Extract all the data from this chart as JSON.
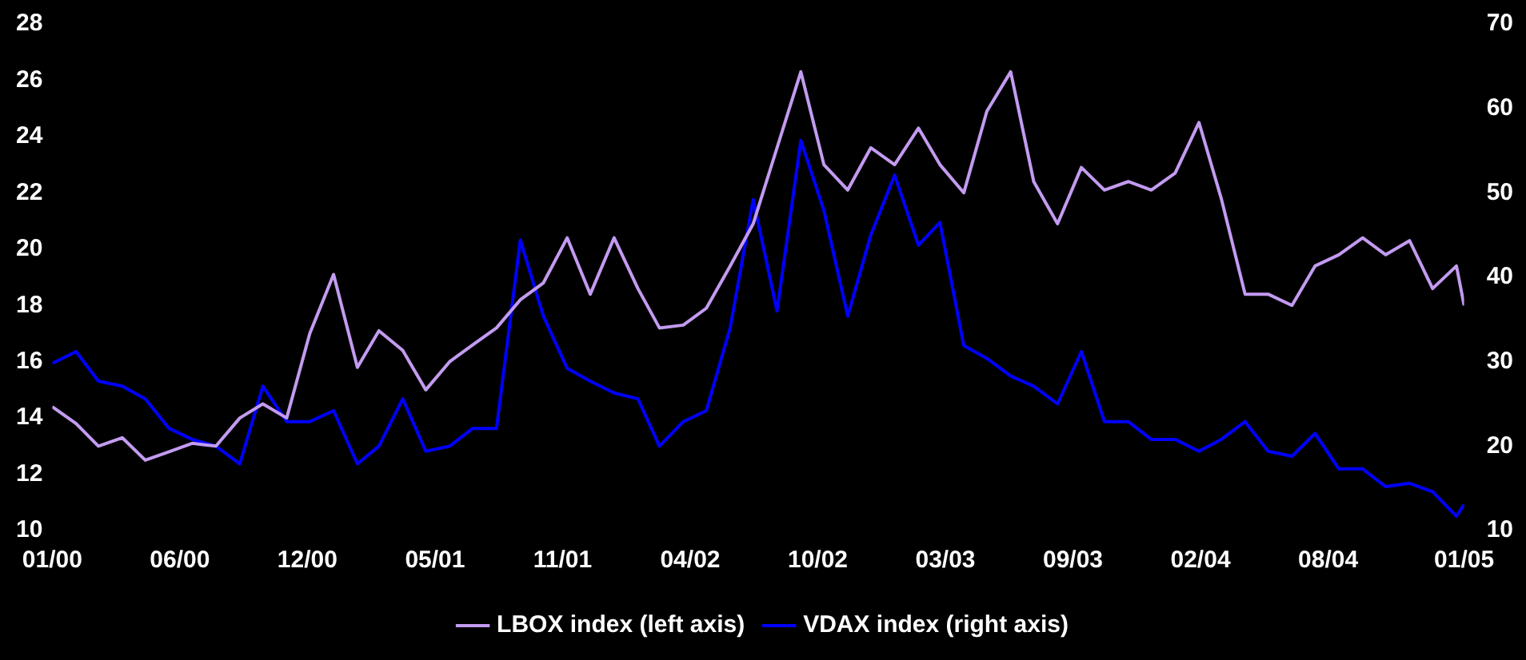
{
  "chart_data": {
    "type": "line",
    "x": [
      "2000-01-15",
      "2000-02-15",
      "2000-03-15",
      "2000-04-15",
      "2000-05-15",
      "2000-06-15",
      "2000-07-15",
      "2000-08-15",
      "2000-09-15",
      "2000-10-15",
      "2000-11-15",
      "2000-12-15",
      "2001-01-15",
      "2001-02-15",
      "2001-03-15",
      "2001-04-15",
      "2001-05-15",
      "2001-06-15",
      "2001-07-15",
      "2001-08-15",
      "2001-09-15",
      "2001-10-15",
      "2001-11-15",
      "2001-12-15",
      "2002-01-15",
      "2002-02-15",
      "2002-03-15",
      "2002-04-15",
      "2002-05-15",
      "2002-06-15",
      "2002-07-15",
      "2002-08-15",
      "2002-09-15",
      "2002-10-15",
      "2002-11-15",
      "2002-12-15",
      "2003-01-15",
      "2003-02-15",
      "2003-03-15",
      "2003-04-15",
      "2003-05-15",
      "2003-06-15",
      "2003-07-15",
      "2003-08-15",
      "2003-09-15",
      "2003-10-15",
      "2003-11-15",
      "2003-12-15",
      "2004-01-15",
      "2004-02-15",
      "2004-03-15",
      "2004-04-15",
      "2004-05-15",
      "2004-06-15",
      "2004-07-15",
      "2004-08-15",
      "2004-09-15",
      "2004-10-15",
      "2004-11-15",
      "2004-12-15",
      "2005-01-15",
      "2005-01-25"
    ],
    "series": [
      {
        "name": "LBOX index (left axis)",
        "color": "#c39bf0",
        "values": [
          14.4,
          13.8,
          13.0,
          13.3,
          12.5,
          12.8,
          13.1,
          13.0,
          14.0,
          14.5,
          14.0,
          17.0,
          19.1,
          15.8,
          17.1,
          16.4,
          15.0,
          16.0,
          16.6,
          17.2,
          18.2,
          18.8,
          20.4,
          18.4,
          20.4,
          18.6,
          17.2,
          17.3,
          17.9,
          19.4,
          20.9,
          23.6,
          26.3,
          23.0,
          22.1,
          23.6,
          23.0,
          24.3,
          23.0,
          22.0,
          24.9,
          26.3,
          22.4,
          20.9,
          22.9,
          22.1,
          22.4,
          22.1,
          22.7,
          24.5,
          21.8,
          18.4,
          18.4,
          18.0,
          19.4,
          19.8,
          20.4,
          19.8,
          20.3,
          18.6,
          19.4,
          18.0
        ]
      },
      {
        "name": "VDAX index (right axis)",
        "color": "#0000ff",
        "axis": "y2",
        "values": [
          29.8,
          31.2,
          27.7,
          27.1,
          25.6,
          22.1,
          20.8,
          20.0,
          17.9,
          27.1,
          22.9,
          22.9,
          24.2,
          17.9,
          20.0,
          25.6,
          19.4,
          20.0,
          22.1,
          22.1,
          44.4,
          35.4,
          29.2,
          27.7,
          26.3,
          25.6,
          20.0,
          22.9,
          24.2,
          34.0,
          49.2,
          36.0,
          56.2,
          47.9,
          35.4,
          45.0,
          52.1,
          43.8,
          46.5,
          31.9,
          30.4,
          28.3,
          27.1,
          25.0,
          31.2,
          22.9,
          22.9,
          20.8,
          20.8,
          19.4,
          20.8,
          22.9,
          19.4,
          18.8,
          21.5,
          17.3,
          17.3,
          15.2,
          15.6,
          14.6,
          11.7,
          13.1
        ]
      }
    ],
    "xlim": [
      "2000-01-15",
      "2005-01-25"
    ],
    "xticks": [
      {
        "value": "2000-01-15",
        "label": "01/00"
      },
      {
        "value": "2000-06-29",
        "label": "06/00"
      },
      {
        "value": "2000-12-12",
        "label": "12/00"
      },
      {
        "value": "2001-05-27",
        "label": "05/01"
      },
      {
        "value": "2001-11-09",
        "label": "11/01"
      },
      {
        "value": "2002-04-24",
        "label": "04/02"
      },
      {
        "value": "2002-10-07",
        "label": "10/02"
      },
      {
        "value": "2003-03-22",
        "label": "03/03"
      },
      {
        "value": "2003-09-04",
        "label": "09/03"
      },
      {
        "value": "2004-02-17",
        "label": "02/04"
      },
      {
        "value": "2004-08-01",
        "label": "08/04"
      },
      {
        "value": "2005-01-25",
        "label": "01/05"
      }
    ],
    "ylim": [
      10,
      28
    ],
    "yticks": [
      10,
      12,
      14,
      16,
      18,
      20,
      22,
      24,
      26,
      28
    ],
    "y2lim": [
      10,
      70
    ],
    "y2ticks": [
      10,
      20,
      30,
      40,
      50,
      60,
      70
    ],
    "grid": false,
    "legend": "bottom",
    "marker": "none",
    "line_style": "solid"
  }
}
